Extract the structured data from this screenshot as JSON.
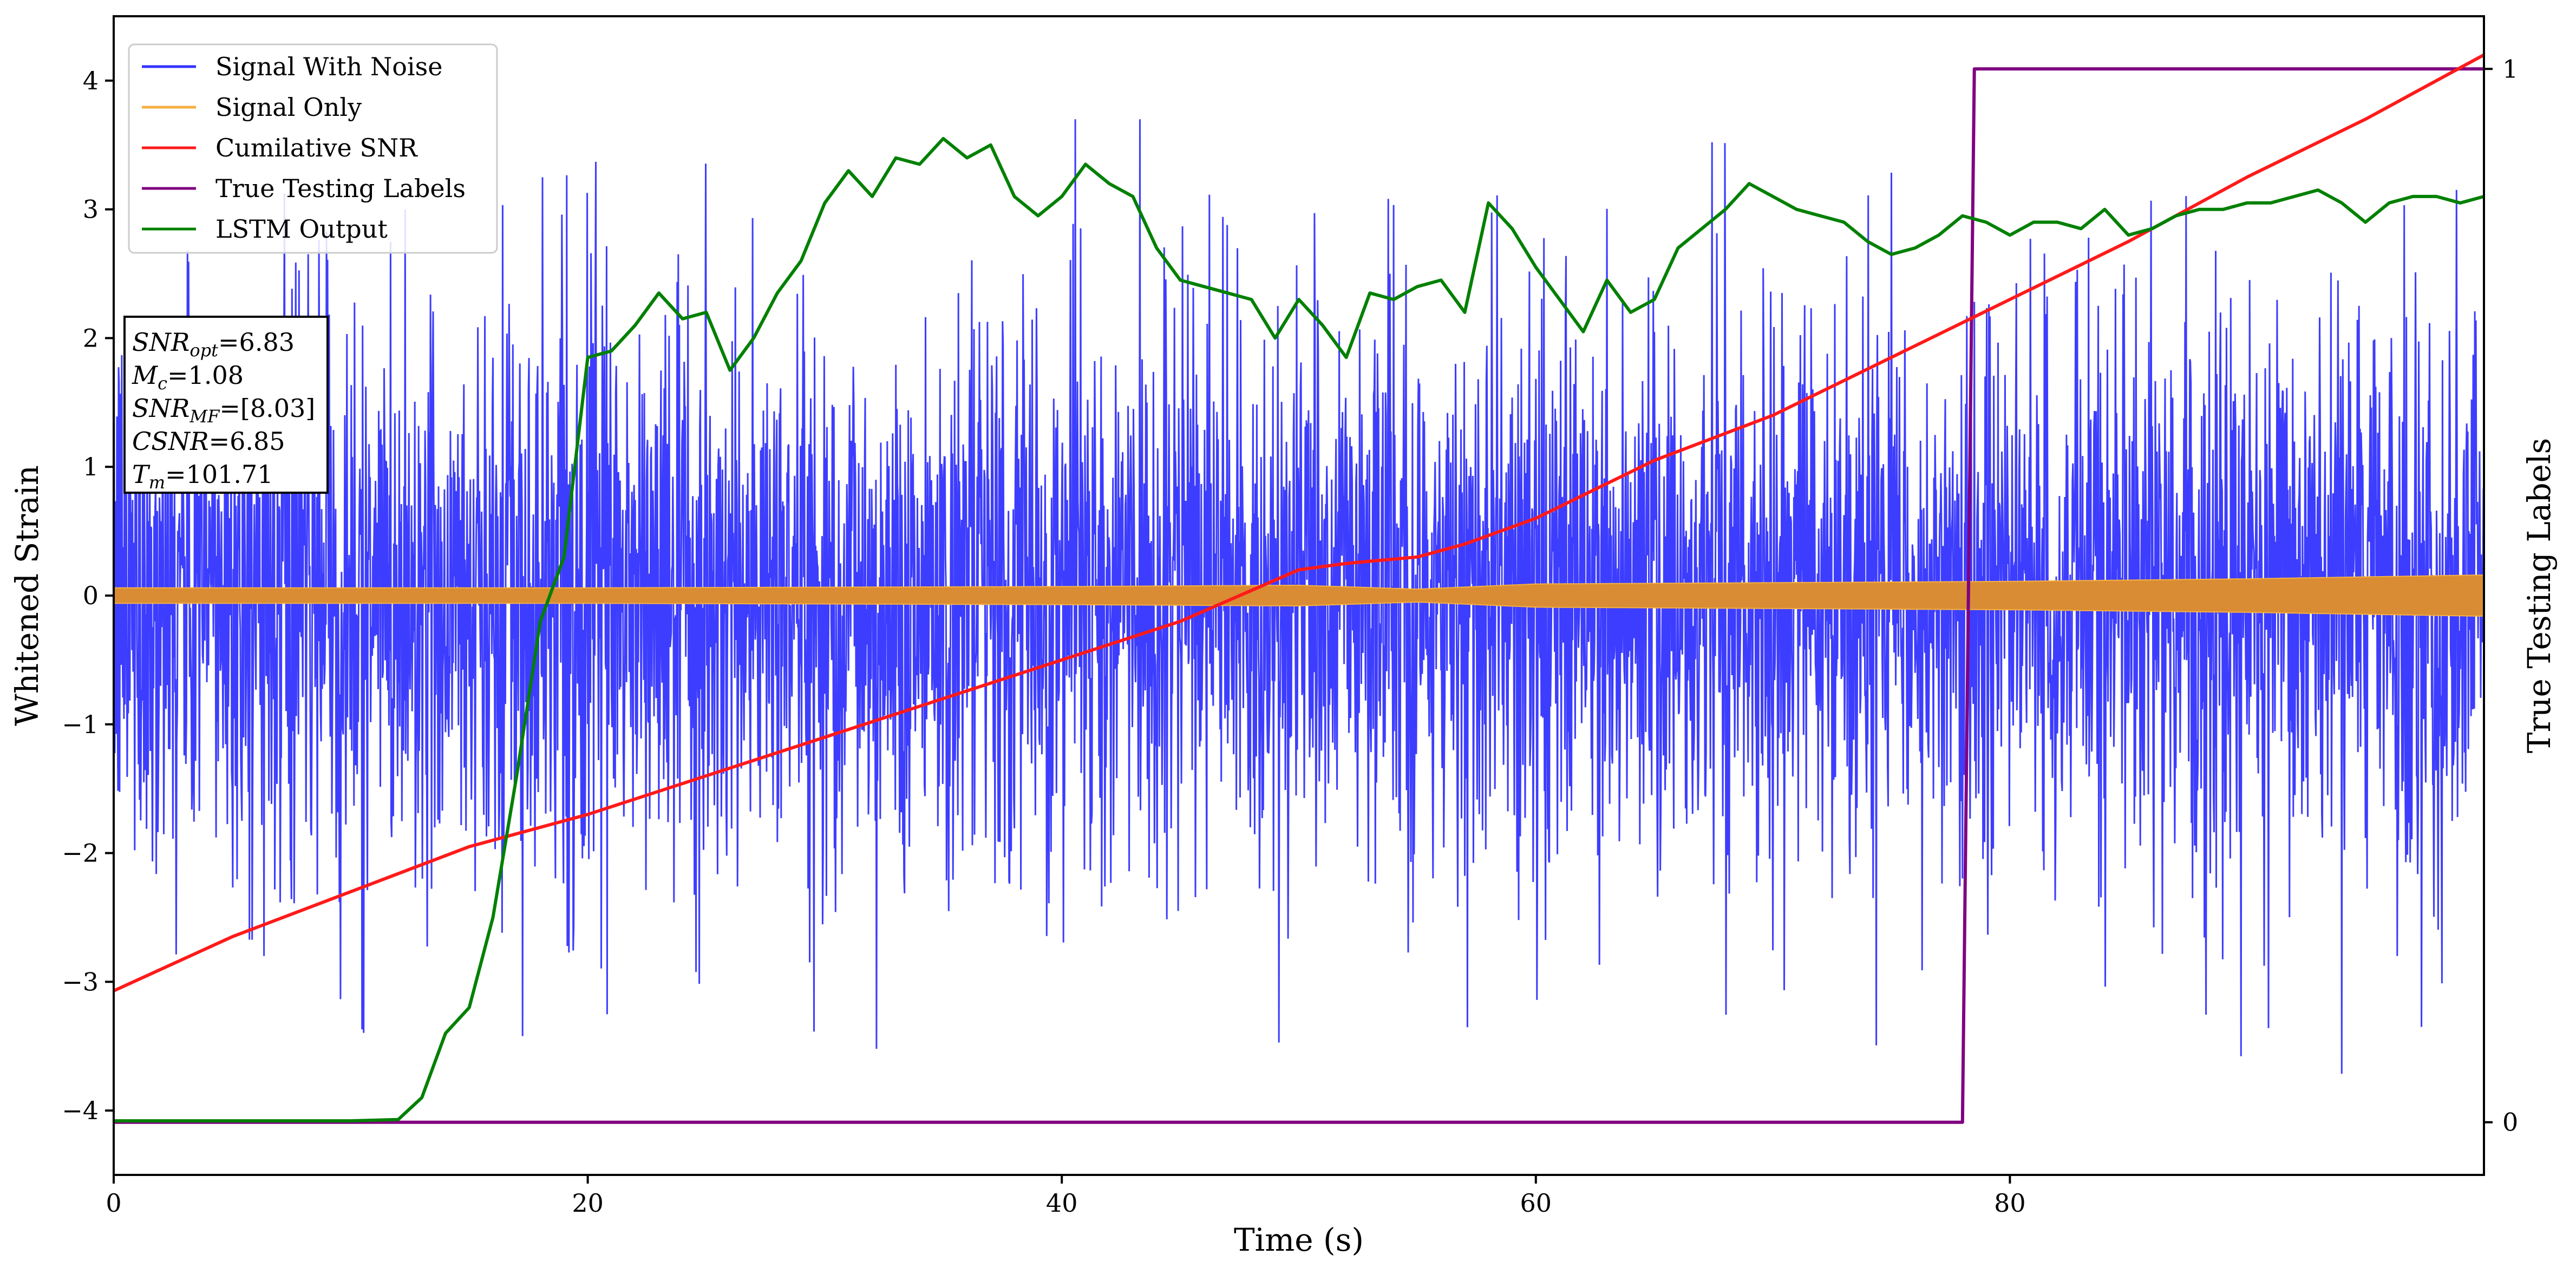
{
  "chart_data": {
    "type": "line",
    "xlabel": "Time (s)",
    "ylabel_left": "Whitened Strain",
    "ylabel_right": "True Testing Labels",
    "xlim": [
      0,
      100
    ],
    "ylim_left": [
      -4.5,
      4.5
    ],
    "ylim_right": [
      -0.05,
      1.05
    ],
    "x_ticks": [
      0,
      20,
      40,
      60,
      80
    ],
    "y_ticks_left": [
      -4,
      -3,
      -2,
      -1,
      0,
      1,
      2,
      3,
      4
    ],
    "y_ticks_right": [
      0,
      1
    ],
    "grid": false,
    "legend_position": "top-left",
    "legend": [
      {
        "name": "Signal With Noise",
        "color": "#3333ff"
      },
      {
        "name": "Signal Only",
        "color": "#f5b041"
      },
      {
        "name": "Cumilative SNR",
        "color": "#ff1a1a"
      },
      {
        "name": "True Testing Labels",
        "color": "#800080"
      },
      {
        "name": "LSTM Output",
        "color": "#008000"
      }
    ],
    "annotation": [
      {
        "var": "SNR",
        "sub": "opt",
        "value": "=6.83"
      },
      {
        "var": "M",
        "sub": "c",
        "value": "=1.08"
      },
      {
        "var": "SNR",
        "sub": "MF",
        "value": "=[8.03]"
      },
      {
        "var": "CSNR",
        "sub": "",
        "value": "=6.85"
      },
      {
        "var": "T",
        "sub": "m",
        "value": "=101.71"
      }
    ],
    "series": [
      {
        "name": "Cumilative SNR",
        "axis": "left",
        "color": "#ff1a1a",
        "x": [
          0,
          5,
          10,
          15,
          20,
          25,
          30,
          35,
          40,
          45,
          50,
          52,
          55,
          57,
          60,
          65,
          70,
          75,
          80,
          85,
          90,
          95,
          100
        ],
        "y": [
          -3.07,
          -2.65,
          -2.3,
          -1.95,
          -1.7,
          -1.4,
          -1.1,
          -0.8,
          -0.5,
          -0.2,
          0.2,
          0.25,
          0.3,
          0.4,
          0.6,
          1.05,
          1.4,
          1.85,
          2.3,
          2.75,
          3.25,
          3.7,
          4.2
        ]
      },
      {
        "name": "True Testing Labels",
        "axis": "right",
        "color": "#800080",
        "x": [
          0,
          78,
          78.5,
          100
        ],
        "y": [
          0,
          0,
          1,
          1
        ]
      },
      {
        "name": "LSTM Output",
        "axis": "left",
        "color": "#008000",
        "x": [
          0,
          10,
          12,
          13,
          14,
          15,
          16,
          17,
          18,
          19,
          20,
          21,
          22,
          23,
          24,
          25,
          26,
          27,
          28,
          29,
          30,
          31,
          32,
          33,
          34,
          35,
          36,
          37,
          38,
          39,
          40,
          41,
          42,
          43,
          44,
          45,
          46,
          47,
          48,
          49,
          50,
          51,
          52,
          53,
          54,
          55,
          56,
          57,
          58,
          59,
          60,
          61,
          62,
          63,
          64,
          65,
          66,
          67,
          68,
          69,
          70,
          71,
          72,
          73,
          74,
          75,
          76,
          77,
          78,
          79,
          80,
          81,
          82,
          83,
          84,
          85,
          86,
          87,
          88,
          89,
          90,
          91,
          92,
          93,
          94,
          95,
          96,
          97,
          98,
          99,
          100
        ],
        "y": [
          -4.08,
          -4.08,
          -4.07,
          -3.9,
          -3.4,
          -3.2,
          -2.5,
          -1.4,
          -0.2,
          0.3,
          1.85,
          1.9,
          2.1,
          2.35,
          2.15,
          2.2,
          1.75,
          2.0,
          2.35,
          2.6,
          3.05,
          3.3,
          3.1,
          3.4,
          3.35,
          3.55,
          3.4,
          3.5,
          3.1,
          2.95,
          3.1,
          3.35,
          3.2,
          3.1,
          2.7,
          2.45,
          2.4,
          2.35,
          2.3,
          2.0,
          2.3,
          2.1,
          1.85,
          2.35,
          2.3,
          2.4,
          2.45,
          2.2,
          3.05,
          2.85,
          2.55,
          2.3,
          2.05,
          2.45,
          2.2,
          2.3,
          2.7,
          2.85,
          3.0,
          3.2,
          3.1,
          3.0,
          2.95,
          2.9,
          2.75,
          2.65,
          2.7,
          2.8,
          2.95,
          2.9,
          2.8,
          2.9,
          2.9,
          2.85,
          3.0,
          2.8,
          2.85,
          2.95,
          3.0,
          3.0,
          3.05,
          3.05,
          3.1,
          3.15,
          3.05,
          2.9,
          3.05,
          3.1,
          3.1,
          3.05,
          3.1
        ]
      },
      {
        "name": "Signal Only",
        "axis": "left",
        "color": "#f5b041",
        "envelope_x": [
          0,
          20,
          40,
          50,
          55,
          60,
          70,
          80,
          90,
          100
        ],
        "envelope_amp": [
          0.06,
          0.06,
          0.07,
          0.08,
          0.05,
          0.09,
          0.1,
          0.11,
          0.13,
          0.16
        ]
      },
      {
        "name": "Signal With Noise",
        "axis": "left",
        "color": "#3333ff",
        "typical_range": [
          -2.6,
          2.6
        ],
        "extremes": [
          -4.1,
          3.7
        ]
      }
    ]
  }
}
